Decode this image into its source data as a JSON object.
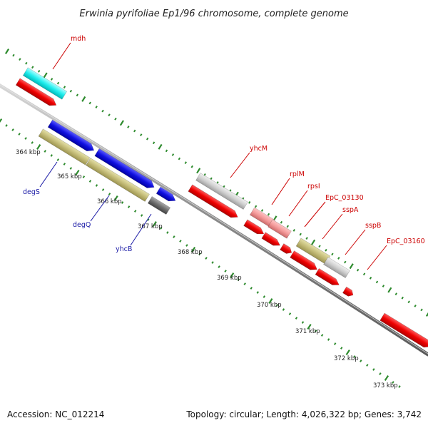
{
  "title": "Erwinia pyrifoliae Ep1/96 chromosome, complete genome",
  "accession": "Accession: NC_012214",
  "summary": "Topology: circular; Length: 4,026,322 bp; Genes: 3,742",
  "colors": {
    "backbone": "#8a8a8a",
    "ruler": "#2e8b2e",
    "label_forward": "#cc0000",
    "label_reverse": "#1a1aa6"
  },
  "ticks": [
    {
      "label": "364 kbp"
    },
    {
      "label": "365 kbp"
    },
    {
      "label": "366 kbp"
    },
    {
      "label": "367 kbp"
    },
    {
      "label": "368 kbp"
    },
    {
      "label": "369 kbp"
    },
    {
      "label": "370 kbp"
    },
    {
      "label": "371 kbp"
    },
    {
      "label": "372 kbp"
    },
    {
      "label": "373 kbp"
    }
  ],
  "forward_labels": [
    {
      "name": "mdh"
    },
    {
      "name": "yhcM"
    },
    {
      "name": "rplM"
    },
    {
      "name": "rpsI"
    },
    {
      "name": "EpC_03130"
    },
    {
      "name": "sspA"
    },
    {
      "name": "sspB"
    },
    {
      "name": "EpC_03160"
    }
  ],
  "reverse_labels": [
    {
      "name": "degS"
    },
    {
      "name": "degQ"
    },
    {
      "name": "yhcB"
    }
  ]
}
